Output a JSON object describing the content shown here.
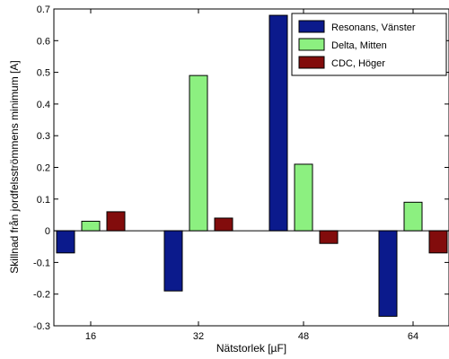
{
  "chart_data": {
    "type": "bar",
    "categories": [
      "16",
      "32",
      "48",
      "64"
    ],
    "series": [
      {
        "name": "Resonans, Vänster",
        "color": "#0b1a8c",
        "values": [
          -0.07,
          -0.19,
          0.68,
          -0.27
        ]
      },
      {
        "name": "Delta, Mitten",
        "color": "#8cf080",
        "values": [
          0.03,
          0.49,
          0.21,
          0.09
        ]
      },
      {
        "name": "CDC, Höger",
        "color": "#820c0c",
        "values": [
          0.06,
          0.04,
          -0.04,
          -0.07
        ]
      }
    ],
    "xlabel": "Nätstorlek [µF]",
    "ylabel": "Skillnad från jordfelsströmmens minimum [A]",
    "ylim": [
      -0.3,
      0.7
    ],
    "yticks": [
      "-0.3",
      "-0.2",
      "-0.1",
      "0",
      "0.1",
      "0.2",
      "0.3",
      "0.4",
      "0.5",
      "0.6",
      "0.7"
    ],
    "grid": false,
    "legend_position": "top-right"
  }
}
